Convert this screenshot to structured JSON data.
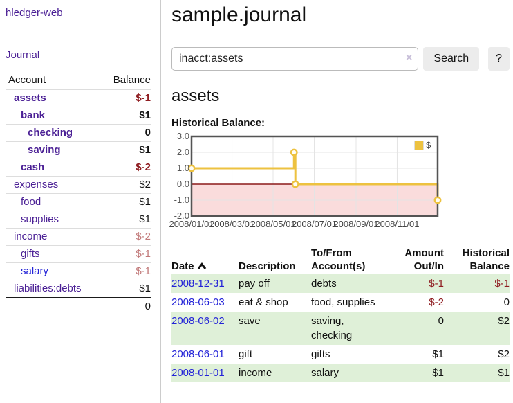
{
  "app": {
    "title": "hledger-web"
  },
  "sidebar": {
    "journal_link": "Journal",
    "accounts": {
      "headers": {
        "account": "Account",
        "balance": "Balance"
      },
      "rows": [
        {
          "name": "assets",
          "balance": "$-1"
        },
        {
          "name": "bank",
          "balance": "$1"
        },
        {
          "name": "checking",
          "balance": "0"
        },
        {
          "name": "saving",
          "balance": "$1"
        },
        {
          "name": "cash",
          "balance": "$-2"
        },
        {
          "name": "expenses",
          "balance": "$2"
        },
        {
          "name": "food",
          "balance": "$1"
        },
        {
          "name": "supplies",
          "balance": "$1"
        },
        {
          "name": "income",
          "balance": "$-2"
        },
        {
          "name": "gifts",
          "balance": "$-1"
        },
        {
          "name": "salary",
          "balance": "$-1"
        },
        {
          "name": "liabilities:debts",
          "balance": "$1"
        }
      ],
      "total": "0"
    }
  },
  "main": {
    "title": "sample.journal",
    "search": {
      "value": "inacct:assets",
      "clear_icon": "×",
      "button_label": "Search",
      "help_label": "?"
    },
    "account_heading": "assets",
    "chart_label": "Historical Balance:"
  },
  "chart_data": {
    "type": "line",
    "title": "Historical Balance",
    "style": "steps",
    "series": [
      {
        "name": "$",
        "color": "#EDC240",
        "points": [
          {
            "date": "2008-01-01",
            "day": 0,
            "value": 1.0
          },
          {
            "date": "2008-06-01",
            "day": 152,
            "value": 2.0
          },
          {
            "date": "2008-06-03",
            "day": 154,
            "value": 0.0
          },
          {
            "date": "2008-12-31",
            "day": 365,
            "value": -1.0
          }
        ]
      }
    ],
    "x_ticks": [
      {
        "label": "2008/01/01",
        "day": 0
      },
      {
        "label": "2008/03/01",
        "day": 60
      },
      {
        "label": "2008/05/01",
        "day": 121
      },
      {
        "label": "2008/07/01",
        "day": 182
      },
      {
        "label": "2008/09/01",
        "day": 244
      },
      {
        "label": "2008/11/01",
        "day": 305
      }
    ],
    "x_range_days": [
      0,
      365
    ],
    "y_ticks": [
      "3.0",
      "2.0",
      "1.0",
      "0.0",
      "-1.0",
      "-2.0"
    ],
    "ylim": [
      -2,
      3
    ],
    "legend": {
      "label": "$",
      "position": "top-right"
    },
    "grid": true,
    "grid_color": "#E4E4E4",
    "border_color": "#545454",
    "zero_line_color": "#8B1A1A",
    "negative_region_color": "#FADCDC"
  },
  "register": {
    "headers": {
      "date": "Date",
      "description": "Description",
      "tofrom1": "To/From",
      "tofrom2": "Account(s)",
      "amount1": "Amount",
      "amount2": "Out/In",
      "hist1": "Historical",
      "hist2": "Balance"
    },
    "rows": [
      {
        "date": "2008-12-31",
        "description": "pay off",
        "accounts": "debts",
        "amount": "$-1",
        "balance": "$-1"
      },
      {
        "date": "2008-06-03",
        "description": "eat & shop",
        "accounts": "food, supplies",
        "amount": "$-2",
        "balance": "0"
      },
      {
        "date": "2008-06-02",
        "description": "save",
        "accounts": "saving, checking",
        "amount": "0",
        "balance": "$2"
      },
      {
        "date": "2008-06-01",
        "description": "gift",
        "accounts": "gifts",
        "amount": "$1",
        "balance": "$2"
      },
      {
        "date": "2008-01-01",
        "description": "income",
        "accounts": "salary",
        "amount": "$1",
        "balance": "$1"
      }
    ]
  }
}
